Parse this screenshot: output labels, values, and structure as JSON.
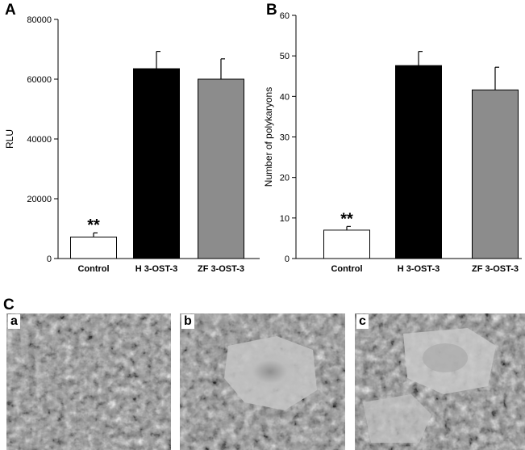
{
  "panel_labels": {
    "a": "A",
    "b": "B",
    "c": "C"
  },
  "micrograph_labels": [
    "a",
    "b",
    "c"
  ],
  "chart_data": [
    {
      "type": "bar",
      "panel": "A",
      "categories": [
        "Control",
        "H 3-OST-3",
        "ZF 3-OST-3"
      ],
      "values": [
        7200,
        63500,
        60000
      ],
      "errors": [
        1400,
        5800,
        6800
      ],
      "colors": [
        "#ffffff",
        "#000000",
        "#8c8c8c"
      ],
      "annotations": [
        "**",
        "",
        ""
      ],
      "ylabel": "RLU",
      "ylim": [
        0,
        80000
      ],
      "yticks": [
        0,
        20000,
        40000,
        60000,
        80000
      ],
      "ytick_labels": [
        "0",
        "20000",
        "40000",
        "60000",
        "80000"
      ]
    },
    {
      "type": "bar",
      "panel": "B",
      "categories": [
        "Control",
        "H 3-OST-3",
        "ZF 3-OST-3"
      ],
      "values": [
        7,
        47.6,
        41.6
      ],
      "errors": [
        0.9,
        3.5,
        5.6
      ],
      "colors": [
        "#ffffff",
        "#000000",
        "#8c8c8c"
      ],
      "annotations": [
        "**",
        "",
        ""
      ],
      "ylabel": "Number of polykaryons",
      "ylim": [
        0,
        60
      ],
      "yticks": [
        0,
        10,
        20,
        30,
        40,
        50,
        60
      ],
      "ytick_labels": [
        "0",
        "10",
        "20",
        "30",
        "40",
        "50",
        "60"
      ]
    }
  ]
}
